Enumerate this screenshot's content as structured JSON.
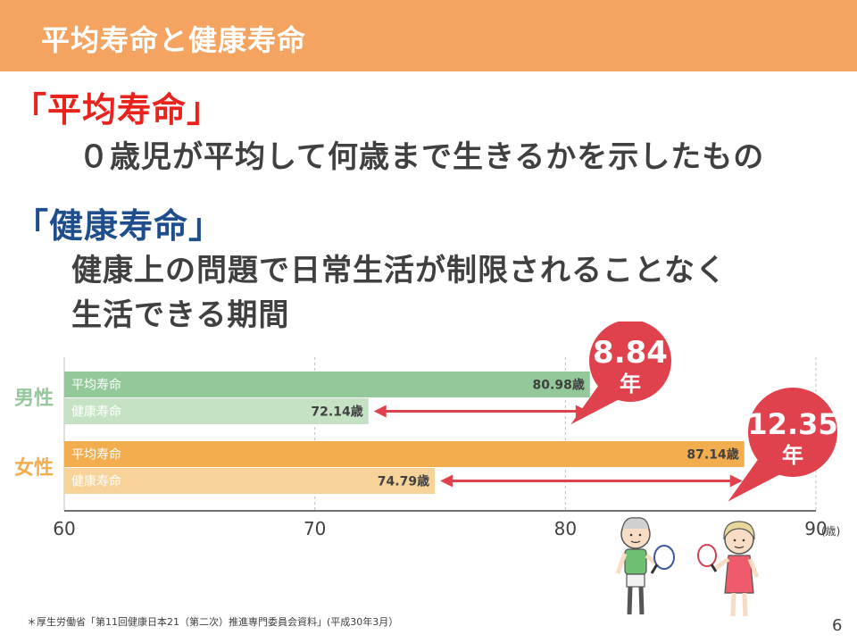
{
  "slide": {
    "title": "平均寿命と健康寿命",
    "term1": "「平均寿命」",
    "term1_desc": "０歳児が平均して何歳まで生きるかを示したもの",
    "term2": "「健康寿命」",
    "term2_desc_line1": "健康上の問題で日常生活が制限されることなく",
    "term2_desc_line2": "生活できる期間",
    "footnote": "＊厚生労働省「第11回健康日本21（第二次）推進専門委員会資料」(平成30年3月）",
    "page_number": "6"
  },
  "colors": {
    "header": "#f4a460",
    "male_avg": "#93c99a",
    "male_healthy": "#c5e3c4",
    "female_avg": "#f2ad4e",
    "female_healthy": "#f7d299",
    "arrow": "#e0424d",
    "bubble": "#e0424d",
    "term1": "#e8231d",
    "term2": "#1f4e8c"
  },
  "chart_data": {
    "type": "bar",
    "orientation": "horizontal",
    "xlim": [
      60,
      90
    ],
    "xticks": [
      "60",
      "70",
      "80",
      "90"
    ],
    "x_unit": "(歳)",
    "grid": true,
    "groups": [
      {
        "name": "男性",
        "bars": [
          {
            "label": "平均寿命",
            "value": 80.98,
            "value_label": "80.98歳"
          },
          {
            "label": "健康寿命",
            "value": 72.14,
            "value_label": "72.14歳"
          }
        ],
        "gap": {
          "number": "8.84",
          "unit": "年"
        }
      },
      {
        "name": "女性",
        "bars": [
          {
            "label": "平均寿命",
            "value": 87.14,
            "value_label": "87.14歳"
          },
          {
            "label": "健康寿命",
            "value": 74.79,
            "value_label": "74.79歳"
          }
        ],
        "gap": {
          "number": "12.35",
          "unit": "年"
        }
      }
    ]
  },
  "icons": {
    "illustration": "elderly-couple-tennis-illustration"
  }
}
